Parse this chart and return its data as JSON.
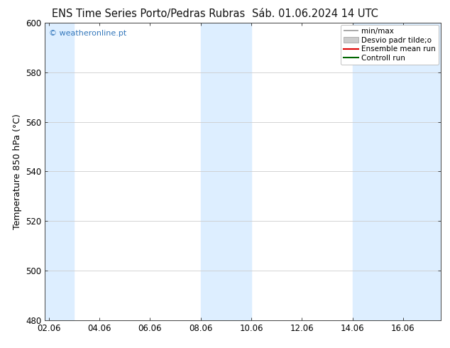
{
  "title1": "ENS Time Series Porto/Pedras Rubras",
  "title2": "Sáb. 01.06.2024 14 UTC",
  "ylabel": "Temperature 850 hPa (°C)",
  "ylim": [
    480,
    600
  ],
  "yticks": [
    480,
    500,
    520,
    540,
    560,
    580,
    600
  ],
  "xtick_labels": [
    "02.06",
    "04.06",
    "06.06",
    "08.06",
    "10.06",
    "12.06",
    "14.06",
    "16.06"
  ],
  "xtick_positions": [
    0,
    2,
    4,
    6,
    8,
    10,
    12,
    14
  ],
  "xlim": [
    -0.15,
    15.5
  ],
  "shade_bands": [
    {
      "start": -0.15,
      "end": 1.0
    },
    {
      "start": 6.0,
      "end": 8.0
    },
    {
      "start": 12.0,
      "end": 15.5
    }
  ],
  "shade_color": "#ddeeff",
  "bg_color": "#ffffff",
  "watermark_text": "© weatheronline.pt",
  "watermark_color": "#3377bb",
  "legend_entries": [
    {
      "label": "min/max",
      "color": "#999999",
      "type": "minmax"
    },
    {
      "label": "Desvio padr tilde;o",
      "color": "#cccccc",
      "type": "fill"
    },
    {
      "label": "Ensemble mean run",
      "color": "#dd0000",
      "type": "line"
    },
    {
      "label": "Controll run",
      "color": "#006600",
      "type": "line"
    }
  ],
  "title_fontsize": 10.5,
  "tick_fontsize": 8.5,
  "ylabel_fontsize": 9,
  "watermark_fontsize": 8,
  "legend_fontsize": 7.5,
  "spine_color": "#444444",
  "grid_color": "#cccccc"
}
